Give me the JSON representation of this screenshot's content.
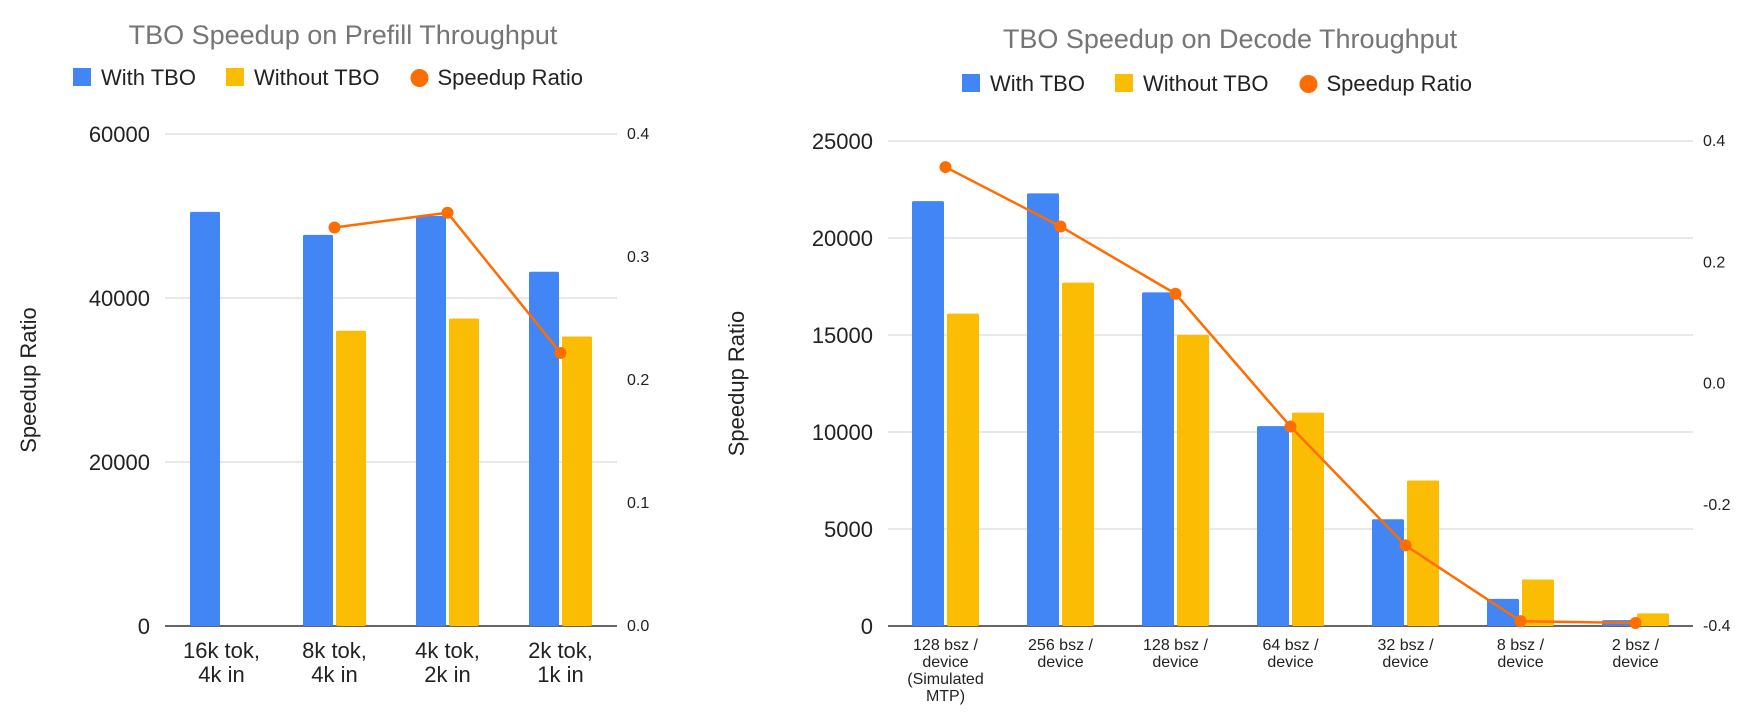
{
  "chart_data": [
    {
      "type": "bar",
      "title": "TBO Speedup on Prefill Throughput",
      "ylabel": "Speedup Ratio",
      "xlabel": "",
      "categories": [
        [
          "16k tok,",
          "4k in"
        ],
        [
          "8k tok,",
          "4k in"
        ],
        [
          "4k tok,",
          "2k in"
        ],
        [
          "2k tok,",
          "1k in"
        ]
      ],
      "series": [
        {
          "name": "With TBO",
          "type": "bar",
          "axis": "left",
          "color": "#4285F4",
          "values": [
            50500,
            47700,
            50000,
            43200
          ]
        },
        {
          "name": "Without TBO",
          "type": "bar",
          "axis": "left",
          "color": "#FBBC04",
          "values": [
            null,
            36000,
            37500,
            35300
          ]
        },
        {
          "name": "Speedup Ratio",
          "type": "line",
          "axis": "right",
          "color": "#FF6D01",
          "values": [
            null,
            0.324,
            0.336,
            0.222
          ]
        }
      ],
      "ylim": [
        0,
        60000
      ],
      "yticks": [
        "0",
        "20000",
        "40000",
        "60000"
      ],
      "y2lim": [
        0,
        0.4
      ],
      "y2ticks": [
        "0.0",
        "0.1",
        "0.2",
        "0.3",
        "0.4"
      ],
      "legend": "top",
      "grid": true
    },
    {
      "type": "bar",
      "title": "TBO Speedup on Decode Throughput",
      "ylabel": "Speedup Ratio",
      "xlabel": "",
      "categories": [
        [
          "128 bsz /",
          "device",
          "(Simulated",
          "MTP)"
        ],
        [
          "256 bsz /",
          "device"
        ],
        [
          "128 bsz /",
          "device"
        ],
        [
          "64 bsz /",
          "device"
        ],
        [
          "32 bsz /",
          "device"
        ],
        [
          "8 bsz /",
          "device"
        ],
        [
          "2 bsz /",
          "device"
        ]
      ],
      "series": [
        {
          "name": "With TBO",
          "type": "bar",
          "axis": "left",
          "color": "#4285F4",
          "values": [
            21900,
            22300,
            17200,
            10300,
            5500,
            1400,
            300
          ]
        },
        {
          "name": "Without TBO",
          "type": "bar",
          "axis": "left",
          "color": "#FBBC04",
          "values": [
            16100,
            17700,
            15000,
            11000,
            7500,
            2400,
            650
          ]
        },
        {
          "name": "Speedup Ratio",
          "type": "line",
          "axis": "right",
          "color": "#FF6D01",
          "values": [
            0.357,
            0.259,
            0.148,
            -0.071,
            -0.267,
            -0.392,
            -0.395
          ]
        }
      ],
      "ylim": [
        0,
        25000
      ],
      "yticks": [
        "0",
        "5000",
        "10000",
        "15000",
        "20000",
        "25000"
      ],
      "y2lim": [
        -0.4,
        0.4
      ],
      "y2ticks": [
        "-0.4",
        "-0.2",
        "0.0",
        "0.2",
        "0.4"
      ],
      "legend": "top",
      "grid": true
    }
  ]
}
